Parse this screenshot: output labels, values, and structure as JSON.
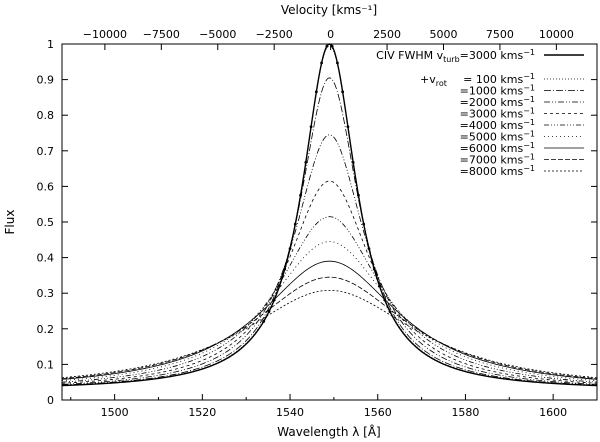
{
  "chart_data": {
    "type": "line",
    "title": "",
    "xlabel": "Wavelength λ [Å]",
    "ylabel": "Flux",
    "x2label": "Velocity [kms⁻¹]",
    "xlim": [
      1488,
      1610
    ],
    "ylim": [
      0,
      1
    ],
    "x2lim": [
      -11900,
      11800
    ],
    "line_center": 1549,
    "xticks": [
      1500,
      1520,
      1540,
      1560,
      1580,
      1600
    ],
    "yticks": [
      0,
      0.1,
      0.2,
      0.3,
      0.4,
      0.5,
      0.6,
      0.7,
      0.8,
      0.9,
      1
    ],
    "x2ticks": [
      -10000,
      -7500,
      -5000,
      -2500,
      0,
      2500,
      5000,
      7500,
      10000
    ],
    "xtick_labels": [
      "1500",
      "1520",
      "1540",
      "1560",
      "1580",
      "1600"
    ],
    "ytick_labels": [
      "0",
      "0.1",
      "0.2",
      "0.3",
      "0.4",
      "0.5",
      "0.6",
      "0.7",
      "0.8",
      "0.9",
      "1"
    ],
    "x2tick_labels": [
      "−10000",
      "−7500",
      "−5000",
      "−2500",
      "0",
      "2500",
      "5000",
      "7500",
      "10000"
    ],
    "grid": false,
    "legend_position": "top-right",
    "legend": {
      "header_prefix": "CIV FWHM v",
      "header_sub": "turb",
      "header_value": "=3000 kms",
      "header_unit_sup": "−1",
      "rot_prefix": "+v",
      "rot_sub": "rot",
      "entries": [
        {
          "label": "=  100 kms",
          "sup": "−1"
        },
        {
          "label": "=1000 kms",
          "sup": "−1"
        },
        {
          "label": "=2000 kms",
          "sup": "−1"
        },
        {
          "label": "=3000 kms",
          "sup": "−1"
        },
        {
          "label": "=4000 kms",
          "sup": "−1"
        },
        {
          "label": "=5000 kms",
          "sup": "−1"
        },
        {
          "label": "=6000 kms",
          "sup": "−1"
        },
        {
          "label": "=7000 kms",
          "sup": "−1"
        },
        {
          "label": "=8000 kms",
          "sup": "−1"
        }
      ]
    },
    "series": [
      {
        "peak": 1.0,
        "hwhm": 7.5,
        "wing": 0.026,
        "dash": "",
        "w": 1.4
      },
      {
        "peak": 0.995,
        "hwhm": 7.6,
        "wing": 0.026,
        "dash": "1 2",
        "w": 0.8
      },
      {
        "peak": 0.905,
        "hwhm": 8.3,
        "wing": 0.026,
        "dash": "7 2 1 2",
        "w": 0.8
      },
      {
        "peak": 0.745,
        "hwhm": 10.0,
        "wing": 0.025,
        "dash": "6 2 1 2 1 2",
        "w": 0.8
      },
      {
        "peak": 0.615,
        "hwhm": 12.0,
        "wing": 0.025,
        "dash": "3 3",
        "w": 0.8
      },
      {
        "peak": 0.515,
        "hwhm": 14.5,
        "wing": 0.024,
        "dash": "5 2 1 2 1 2 1 2",
        "w": 0.8
      },
      {
        "peak": 0.445,
        "hwhm": 17.0,
        "wing": 0.024,
        "dash": "1 3",
        "w": 0.8
      },
      {
        "peak": 0.39,
        "hwhm": 19.5,
        "wing": 0.024,
        "dash": "",
        "w": 0.8
      },
      {
        "peak": 0.345,
        "hwhm": 22.0,
        "wing": 0.023,
        "dash": "5 2",
        "w": 0.8
      },
      {
        "peak": 0.308,
        "hwhm": 24.5,
        "wing": 0.023,
        "dash": "2 2",
        "w": 0.8
      }
    ],
    "markers_on_first_series": true
  }
}
